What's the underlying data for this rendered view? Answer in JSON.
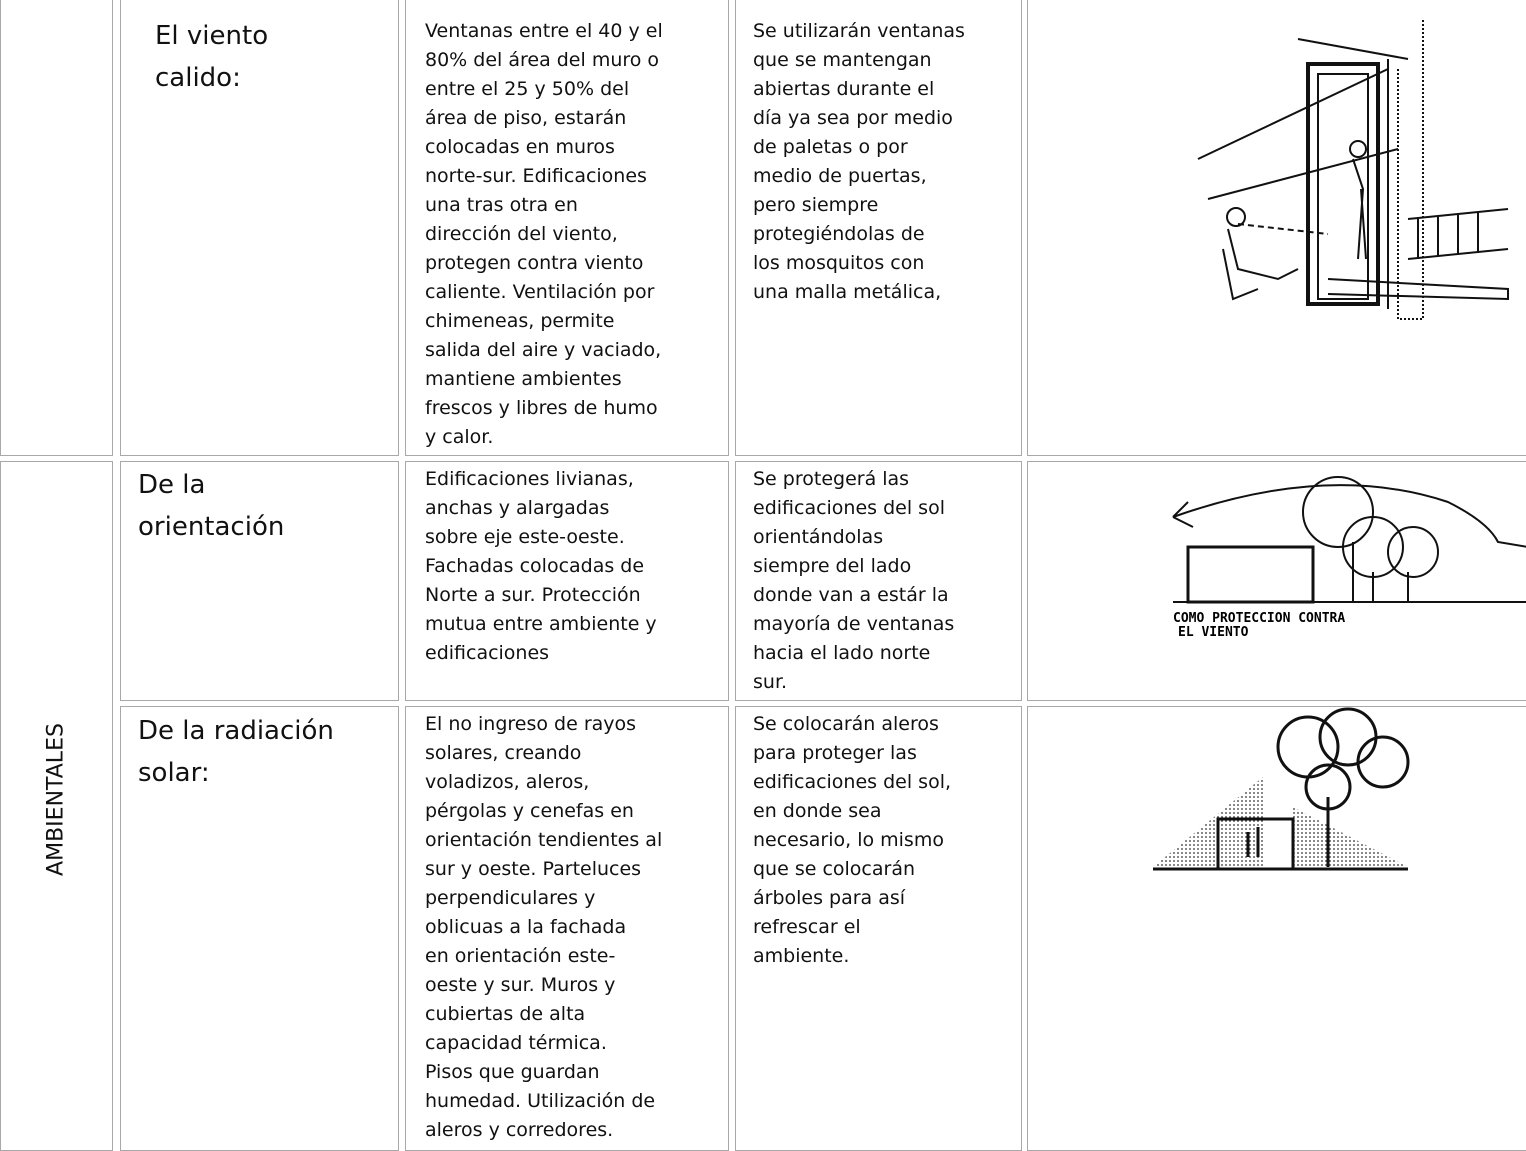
{
  "table": {
    "category": "AMBIENTALES",
    "rows": [
      {
        "concept": [
          "El viento",
          "calido:"
        ],
        "strategy": [
          "Ventanas entre el 40 y el",
          "80% del área del muro o",
          "entre el 25 y 50% del",
          "área de piso, estarán",
          "colocadas en muros",
          "norte-sur.  Edificaciones",
          "una tras otra en",
          "dirección del viento,",
          "protegen contra viento",
          "caliente.  Ventilación por",
          "chimeneas, permite",
          "salida del aire y vaciado,",
          "mantiene ambientes",
          "frescos y libres de humo",
          "y calor."
        ],
        "application": [
          "Se utilizarán ventanas",
          "que se mantengan",
          "abiertas durante el",
          "día ya sea por medio",
          "de paletas o por",
          "medio de puertas,",
          "pero siempre",
          "protegiéndolas de",
          "los mosquitos con",
          "una malla metálica,"
        ]
      },
      {
        "concept": [
          "De la",
          "orientación"
        ],
        "strategy": [
          "Edificaciones livianas,",
          "anchas y alargadas",
          "sobre eje este-oeste.",
          "Fachadas colocadas de",
          "Norte a sur. Protección",
          "mutua entre ambiente y",
          "edificaciones"
        ],
        "application": [
          "Se protegerá las",
          "edificaciones del sol",
          "orientándolas",
          "siempre del lado",
          "donde van a estár la",
          "mayoría de ventanas",
          "hacia el lado norte",
          "sur."
        ],
        "image_caption": [
          "COMO PROTECCION CONTRA",
          "EL VIENTO"
        ]
      },
      {
        "concept": [
          "De la radiación",
          "solar:"
        ],
        "strategy": [
          "El no ingreso de rayos",
          "solares, creando",
          "voladizos, aleros,",
          "pérgolas y cenefas en",
          "orientación tendientes al",
          "sur y oeste.  Parteluces",
          "perpendiculares y",
          "oblicuas a la fachada",
          "en orientación este-",
          "oeste y sur.  Muros y",
          "cubiertas de alta",
          "capacidad térmica.",
          "Pisos que guardan",
          "humedad.  Utilización de",
          "aleros y corredores."
        ],
        "application": [
          "Se colocarán aleros",
          "para proteger las",
          "edificaciones del sol,",
          "en donde sea",
          "necesario, lo mismo",
          "que se colocarán",
          "árboles para así",
          "refrescar el",
          "ambiente."
        ]
      }
    ]
  }
}
